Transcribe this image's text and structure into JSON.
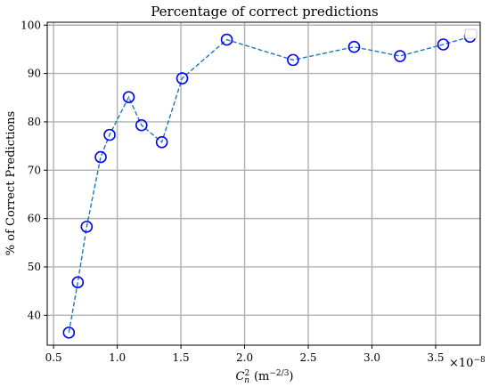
{
  "chart_data": {
    "type": "line",
    "title": "Percentage of correct predictions",
    "xlabel_main": "C",
    "xlabel_sup": "2",
    "xlabel_sub": "n",
    "xlabel_unit_open": "(m",
    "xlabel_unit_exp": "−2/3",
    "xlabel_unit_close": ")",
    "ylabel": "% of Correct Predictions",
    "x_offset_base": "×10",
    "x_offset_exp": "−8",
    "xlim": [
      0.45,
      3.85
    ],
    "ylim": [
      33.8,
      100.6
    ],
    "x_ticks": [
      0.5,
      1.0,
      1.5,
      2.0,
      2.5,
      3.0,
      3.5
    ],
    "x_tick_labels": [
      "0.5",
      "1.0",
      "1.5",
      "2.0",
      "2.5",
      "3.0",
      "3.5"
    ],
    "y_ticks": [
      40,
      50,
      60,
      70,
      80,
      90,
      100
    ],
    "y_tick_labels": [
      "40",
      "50",
      "60",
      "70",
      "80",
      "90",
      "100"
    ],
    "grid": true,
    "legend_placement": "top-right",
    "series": [
      {
        "line_color": "#1f77b4",
        "marker_color": "#0000ff",
        "line_style": "dashed",
        "marker": "open-circle",
        "x": [
          0.62,
          0.69,
          0.76,
          0.87,
          0.94,
          1.09,
          1.19,
          1.35,
          1.51,
          1.86,
          2.38,
          2.86,
          3.22,
          3.56,
          3.77
        ],
        "y": [
          36.4,
          46.8,
          58.3,
          72.7,
          77.3,
          85.1,
          79.3,
          75.8,
          89.0,
          97.0,
          92.8,
          95.5,
          93.6,
          96.0,
          97.6
        ]
      }
    ]
  }
}
